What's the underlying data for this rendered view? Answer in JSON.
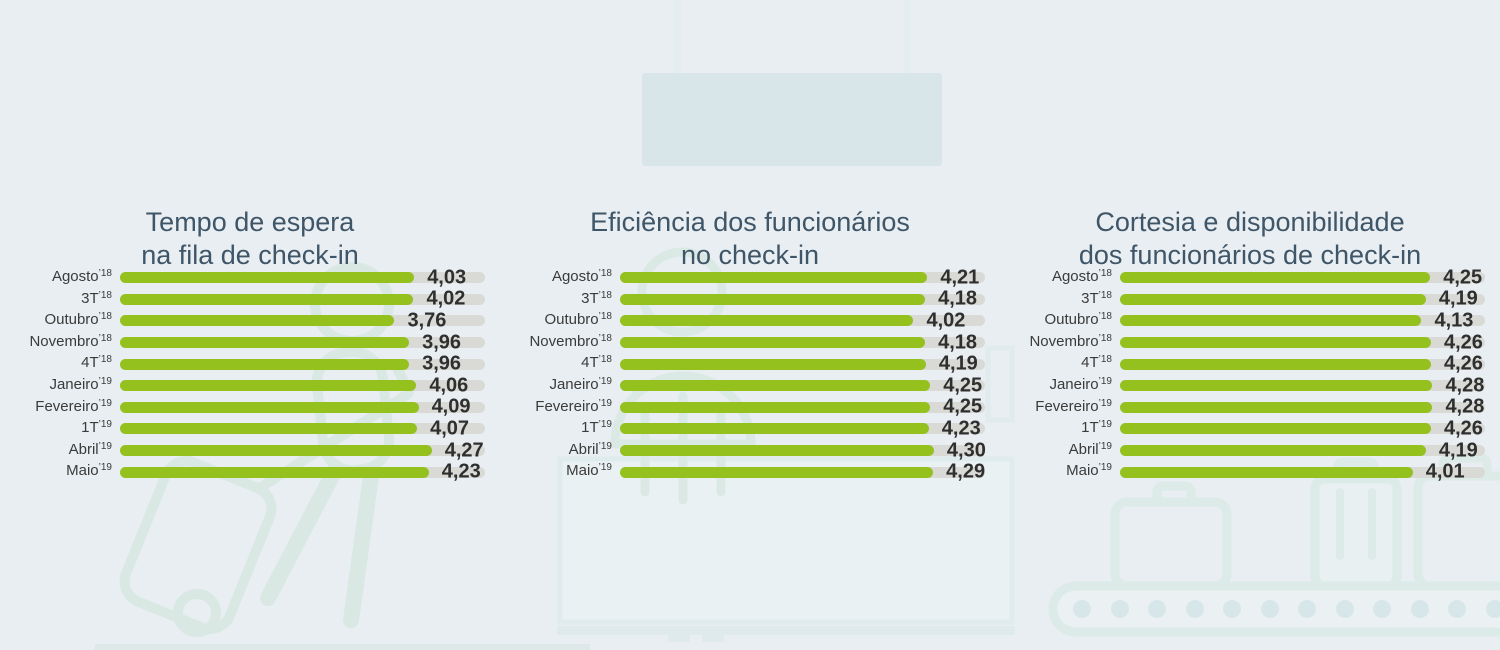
{
  "page": {
    "type": "infographic",
    "background": "#e8eef1"
  },
  "decor": {
    "sign_fill": "#d9e6e9",
    "sign_post_fill": "#e4edef",
    "art_teal": "#d9e8e3",
    "art_blue": "#dfeaec",
    "floor_strip": "#dfe8e9",
    "art_elements": [
      "hanging-sign",
      "walking-traveler-with-suitcase",
      "luggage-scale",
      "checkin-desk",
      "kiosk-panel",
      "conveyor-belt-with-suitcases",
      "floor-line"
    ]
  },
  "style": {
    "bar_color": "#95c11f",
    "track_color": "#d9d9d6",
    "title_color": "#3f5568",
    "label_color": "#3b3b3b",
    "value_color": "#2f2f2f"
  },
  "chart_data": [
    {
      "type": "bar",
      "orientation": "horizontal",
      "title_lines": [
        "Tempo de espera",
        "na fila de check-in"
      ],
      "categories": [
        {
          "name": "Agosto",
          "year": "’18"
        },
        {
          "name": "3T",
          "year": "’18"
        },
        {
          "name": "Outubro",
          "year": "’18"
        },
        {
          "name": "Novembro",
          "year": "’18"
        },
        {
          "name": "4T",
          "year": "’18"
        },
        {
          "name": "Janeiro",
          "year": "’19"
        },
        {
          "name": "Fevereiro",
          "year": "’19"
        },
        {
          "name": "1T",
          "year": "’19"
        },
        {
          "name": "Abril",
          "year": "’19"
        },
        {
          "name": "Maio",
          "year": "’19"
        }
      ],
      "values": [
        4.03,
        4.02,
        3.76,
        3.96,
        3.96,
        4.06,
        4.09,
        4.07,
        4.27,
        4.23
      ],
      "value_labels": [
        "4,03",
        "4,02",
        "3,76",
        "3,96",
        "3,96",
        "4,06",
        "4,09",
        "4,07",
        "4,27",
        "4,23"
      ],
      "xlim": [
        0,
        5
      ],
      "bar_color": "#95c11f",
      "track_color": "#d9d9d6",
      "grid": false,
      "legend": "none"
    },
    {
      "type": "bar",
      "orientation": "horizontal",
      "title_lines": [
        "Eficiência dos funcionários",
        "no check-in"
      ],
      "categories": [
        {
          "name": "Agosto",
          "year": "’18"
        },
        {
          "name": "3T",
          "year": "’18"
        },
        {
          "name": "Outubro",
          "year": "’18"
        },
        {
          "name": "Novembro",
          "year": "’18"
        },
        {
          "name": "4T",
          "year": "’18"
        },
        {
          "name": "Janeiro",
          "year": "’19"
        },
        {
          "name": "Fevereiro",
          "year": "’19"
        },
        {
          "name": "1T",
          "year": "’19"
        },
        {
          "name": "Abril",
          "year": "’19"
        },
        {
          "name": "Maio",
          "year": "’19"
        }
      ],
      "values": [
        4.21,
        4.18,
        4.02,
        4.18,
        4.19,
        4.25,
        4.25,
        4.23,
        4.3,
        4.29
      ],
      "value_labels": [
        "4,21",
        "4,18",
        "4,02",
        "4,18",
        "4,19",
        "4,25",
        "4,25",
        "4,23",
        "4,30",
        "4,29"
      ],
      "xlim": [
        0,
        5
      ],
      "bar_color": "#95c11f",
      "track_color": "#d9d9d6",
      "grid": false,
      "legend": "none"
    },
    {
      "type": "bar",
      "orientation": "horizontal",
      "title_lines": [
        "Cortesia e disponibilidade",
        "dos funcionários de check-in"
      ],
      "categories": [
        {
          "name": "Agosto",
          "year": "’18"
        },
        {
          "name": "3T",
          "year": "’18"
        },
        {
          "name": "Outubro",
          "year": "’18"
        },
        {
          "name": "Novembro",
          "year": "’18"
        },
        {
          "name": "4T",
          "year": "’18"
        },
        {
          "name": "Janeiro",
          "year": "’19"
        },
        {
          "name": "Fevereiro",
          "year": "’19"
        },
        {
          "name": "1T",
          "year": "’19"
        },
        {
          "name": "Abril",
          "year": "’19"
        },
        {
          "name": "Maio",
          "year": "’19"
        }
      ],
      "values": [
        4.25,
        4.19,
        4.13,
        4.26,
        4.26,
        4.28,
        4.28,
        4.26,
        4.19,
        4.01
      ],
      "value_labels": [
        "4,25",
        "4,19",
        "4,13",
        "4,26",
        "4,26",
        "4,28",
        "4,28",
        "4,26",
        "4,19",
        "4,01"
      ],
      "xlim": [
        0,
        5
      ],
      "bar_color": "#95c11f",
      "track_color": "#d9d9d6",
      "grid": false,
      "legend": "none"
    }
  ]
}
